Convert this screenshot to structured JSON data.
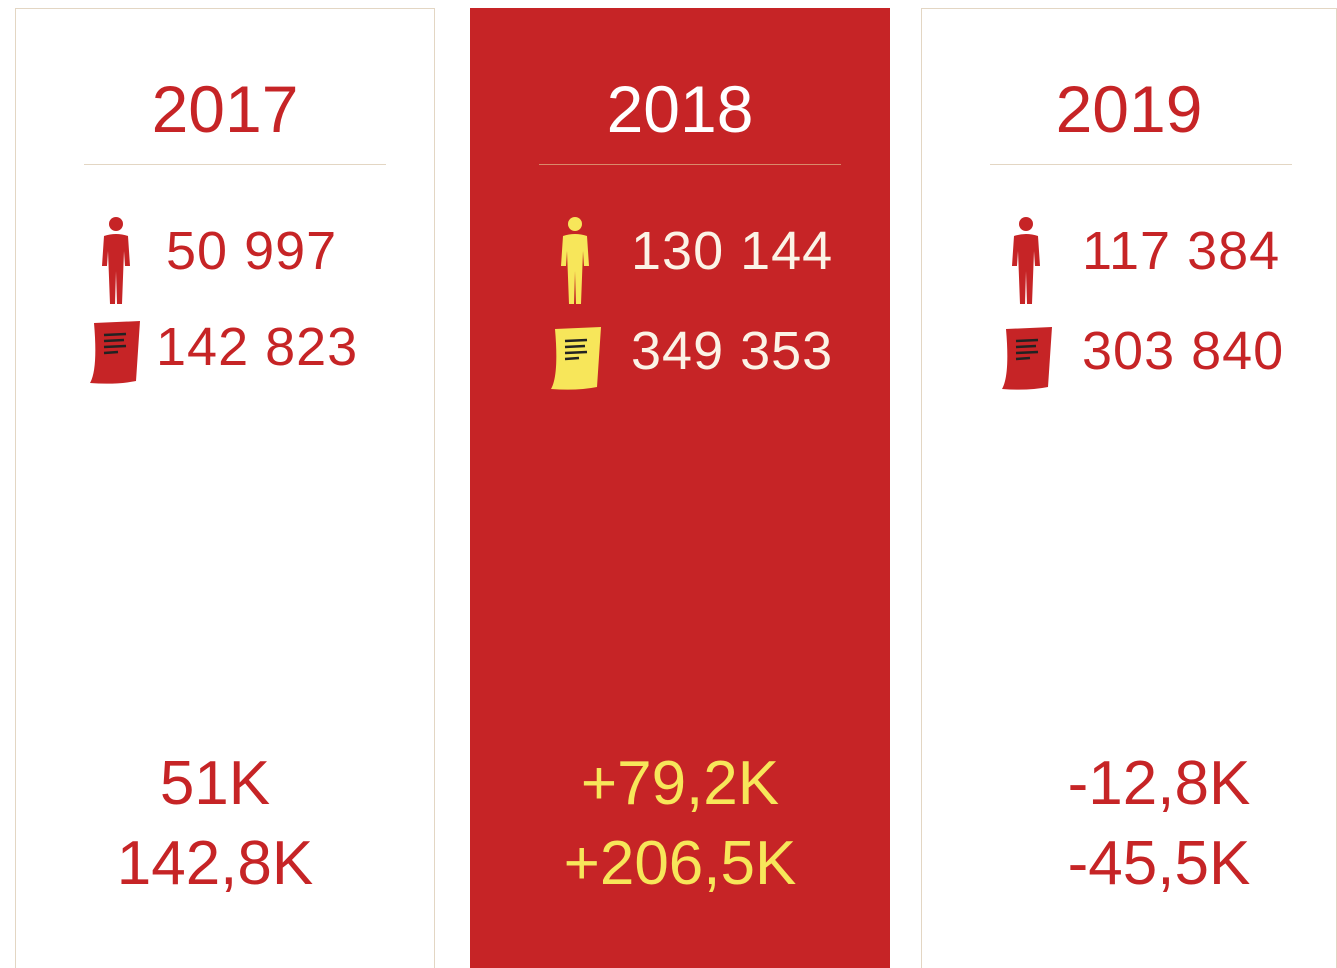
{
  "cards": [
    {
      "year": "2017",
      "people": "50 997",
      "documents": "142 823",
      "change_people": "51K",
      "change_documents": "142,8K"
    },
    {
      "year": "2018",
      "people": "130 144",
      "documents": "349 353",
      "change_people": "+79,2K",
      "change_documents": "+206,5K"
    },
    {
      "year": "2019",
      "people": "117 384",
      "documents": "303 840",
      "change_people": "-12,8K",
      "change_documents": "-45,5K"
    }
  ]
}
